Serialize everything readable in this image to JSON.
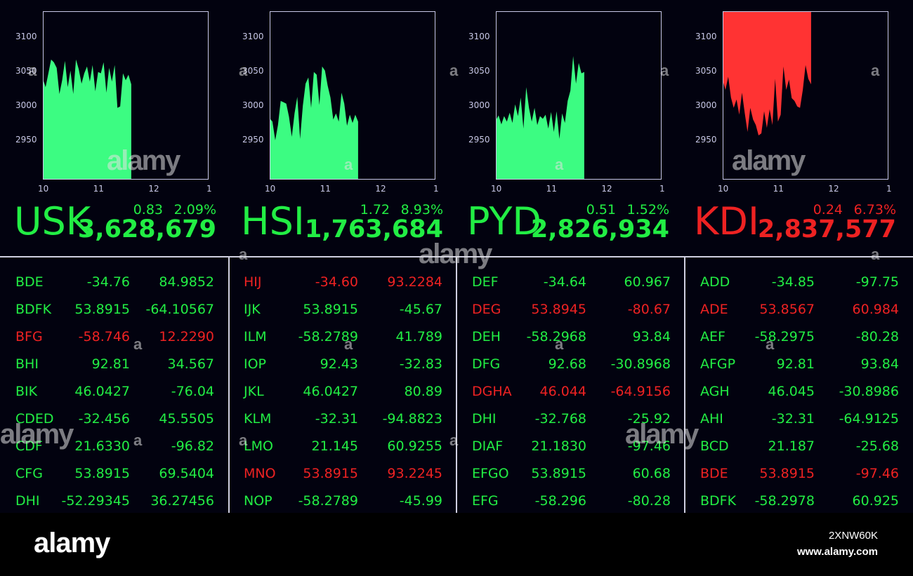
{
  "colors": {
    "up": "#22ee44",
    "down": "#ee2222",
    "area_up": "#3cfc82",
    "area_down": "#ff3333",
    "frame": "#c8c8e6"
  },
  "chart_data": [
    {
      "type": "area",
      "ticker": "USK",
      "direction": "up",
      "yticks": [
        "3100",
        "3050",
        "3000",
        "2950"
      ],
      "xticks": [
        "10",
        "11",
        "12",
        "1"
      ],
      "xlim": [
        10,
        13
      ],
      "ylim": [
        2906,
        3150
      ],
      "x": [
        10,
        10.05,
        10.1,
        10.15,
        10.2,
        10.25,
        10.3,
        10.35,
        10.4,
        10.45,
        10.5,
        10.55,
        10.6,
        10.65,
        10.7,
        10.75,
        10.8,
        10.85,
        10.9,
        10.95,
        11,
        11.05,
        11.1,
        11.15,
        11.2,
        11.25,
        11.3,
        11.35,
        11.4,
        11.45,
        11.5,
        11.55,
        11.6
      ],
      "values": [
        3052,
        3040,
        3060,
        3080,
        3076,
        3068,
        3030,
        3050,
        3078,
        3040,
        3064,
        3030,
        3080,
        3066,
        3045,
        3060,
        3070,
        3048,
        3072,
        3034,
        3062,
        3060,
        3076,
        3032,
        3068,
        3048,
        3072,
        3010,
        3012,
        3060,
        3050,
        3058,
        3044
      ]
    },
    {
      "type": "area",
      "ticker": "HSI",
      "direction": "up",
      "yticks": [
        "3100",
        "3050",
        "3000",
        "2950"
      ],
      "xticks": [
        "10",
        "11",
        "12",
        "1"
      ],
      "xlim": [
        10,
        13
      ],
      "ylim": [
        2906,
        3150
      ],
      "x": [
        10,
        10.05,
        10.1,
        10.15,
        10.2,
        10.25,
        10.3,
        10.35,
        10.4,
        10.45,
        10.5,
        10.55,
        10.6,
        10.65,
        10.7,
        10.75,
        10.8,
        10.85,
        10.9,
        10.95,
        11,
        11.05,
        11.1,
        11.15,
        11.2,
        11.25,
        11.3,
        11.35,
        11.4,
        11.45,
        11.5,
        11.55,
        11.6
      ],
      "values": [
        2995,
        2990,
        2963,
        2985,
        3020,
        3018,
        3016,
        2997,
        2968,
        3002,
        3026,
        2965,
        3013,
        3045,
        3054,
        3010,
        3062,
        3058,
        3014,
        3070,
        3064,
        3042,
        3025,
        2993,
        3002,
        2990,
        3032,
        3016,
        2984,
        3000,
        2988,
        3000,
        2990
      ]
    },
    {
      "type": "area",
      "ticker": "PYD",
      "direction": "up",
      "yticks": [
        "3100",
        "3050",
        "3000",
        "2950"
      ],
      "xticks": [
        "10",
        "11",
        "12",
        "1"
      ],
      "xlim": [
        10,
        13
      ],
      "ylim": [
        2906,
        3150
      ],
      "x": [
        10,
        10.05,
        10.1,
        10.15,
        10.2,
        10.25,
        10.3,
        10.35,
        10.4,
        10.45,
        10.5,
        10.55,
        10.6,
        10.65,
        10.7,
        10.75,
        10.8,
        10.85,
        10.9,
        10.95,
        11,
        11.05,
        11.1,
        11.15,
        11.2,
        11.25,
        11.3,
        11.35,
        11.4,
        11.45,
        11.5,
        11.55,
        11.6
      ],
      "values": [
        2992,
        2999,
        2986,
        2998,
        2990,
        3003,
        2988,
        3015,
        2998,
        3025,
        2980,
        3040,
        3010,
        2990,
        3010,
        2985,
        2998,
        2994,
        3000,
        2980,
        3004,
        2975,
        3005,
        2965,
        3002,
        2988,
        3020,
        3035,
        3085,
        3045,
        3075,
        3060,
        3062
      ]
    },
    {
      "type": "area",
      "ticker": "KDI",
      "direction": "down",
      "yticks": [
        "3100",
        "3050",
        "3000",
        "2950"
      ],
      "xticks": [
        "10",
        "11",
        "12",
        "1"
      ],
      "xlim": [
        10,
        13
      ],
      "ylim": [
        2906,
        3150
      ],
      "x": [
        10,
        10.05,
        10.1,
        10.15,
        10.2,
        10.25,
        10.3,
        10.35,
        10.4,
        10.45,
        10.5,
        10.55,
        10.6,
        10.65,
        10.7,
        10.75,
        10.8,
        10.85,
        10.9,
        10.95,
        11,
        11.05,
        11.1,
        11.15,
        11.2,
        11.25,
        11.3,
        11.35,
        11.4,
        11.45,
        11.5,
        11.55,
        11.6
      ],
      "values": [
        3050,
        3036,
        3055,
        3025,
        3010,
        3022,
        3000,
        3032,
        3002,
        2975,
        3010,
        2993,
        2985,
        2970,
        2973,
        3005,
        2981,
        3008,
        2985,
        3052,
        2990,
        3000,
        3070,
        3036,
        3051,
        3024,
        3020,
        3012,
        3010,
        3036,
        3072,
        3052,
        3044
      ]
    }
  ],
  "quotes": [
    {
      "ticker": "USK",
      "change": "0.83",
      "pct": "2.09%",
      "price": "3,628,679",
      "direction": "up"
    },
    {
      "ticker": "HSI",
      "change": "1.72",
      "pct": "8.93%",
      "price": "1,763,684",
      "direction": "up"
    },
    {
      "ticker": "PYD",
      "change": "0.51",
      "pct": "1.52%",
      "price": "2,826,934",
      "direction": "up"
    },
    {
      "ticker": "KDI",
      "change": "0.24",
      "pct": "6.73%",
      "price": "2,837,577",
      "direction": "down"
    }
  ],
  "tables": [
    [
      {
        "sym": "BDE",
        "a": "-34.76",
        "b": "84.9852",
        "dir": "up"
      },
      {
        "sym": "BDFK",
        "a": "53.8915",
        "b": "-64.10567",
        "dir": "up"
      },
      {
        "sym": "BFG",
        "a": "-58.746",
        "b": "12.2290",
        "dir": "down"
      },
      {
        "sym": "BHI",
        "a": "92.81",
        "b": "34.567",
        "dir": "up"
      },
      {
        "sym": "BIK",
        "a": "46.0427",
        "b": "-76.04",
        "dir": "up"
      },
      {
        "sym": "CDED",
        "a": "-32.456",
        "b": "45.5505",
        "dir": "up"
      },
      {
        "sym": "CDF",
        "a": "21.6330",
        "b": "-96.82",
        "dir": "up"
      },
      {
        "sym": "CFG",
        "a": "53.8915",
        "b": "69.5404",
        "dir": "up"
      },
      {
        "sym": "DHI",
        "a": "-52.29345",
        "b": "36.27456",
        "dir": "up"
      }
    ],
    [
      {
        "sym": "HIJ",
        "a": "-34.60",
        "b": "93.2284",
        "dir": "down"
      },
      {
        "sym": "IJK",
        "a": "53.8915",
        "b": "-45.67",
        "dir": "up"
      },
      {
        "sym": "ILM",
        "a": "-58.2789",
        "b": "41.789",
        "dir": "up"
      },
      {
        "sym": "IOP",
        "a": "92.43",
        "b": "-32.83",
        "dir": "up"
      },
      {
        "sym": "JKL",
        "a": "46.0427",
        "b": "80.89",
        "dir": "up"
      },
      {
        "sym": "KLM",
        "a": "-32.31",
        "b": "-94.8823",
        "dir": "up"
      },
      {
        "sym": "LMO",
        "a": "21.145",
        "b": "60.9255",
        "dir": "up"
      },
      {
        "sym": "MNO",
        "a": "53.8915",
        "b": "93.2245",
        "dir": "down"
      },
      {
        "sym": "NOP",
        "a": "-58.2789",
        "b": "-45.99",
        "dir": "up"
      }
    ],
    [
      {
        "sym": "DEF",
        "a": "-34.64",
        "b": "60.967",
        "dir": "up"
      },
      {
        "sym": "DEG",
        "a": "53.8945",
        "b": "-80.67",
        "dir": "down"
      },
      {
        "sym": "DEH",
        "a": "-58.2968",
        "b": "93.84",
        "dir": "up"
      },
      {
        "sym": "DFG",
        "a": "92.68",
        "b": "-30.8968",
        "dir": "up"
      },
      {
        "sym": "DGHA",
        "a": "46.044",
        "b": "-64.9156",
        "dir": "down"
      },
      {
        "sym": "DHI",
        "a": "-32.768",
        "b": "-25.92",
        "dir": "up"
      },
      {
        "sym": "DIAF",
        "a": "21.1830",
        "b": "-97.46",
        "dir": "up"
      },
      {
        "sym": "EFGO",
        "a": "53.8915",
        "b": "60.68",
        "dir": "up"
      },
      {
        "sym": "EFG",
        "a": "-58.296",
        "b": "-80.28",
        "dir": "up"
      }
    ],
    [
      {
        "sym": "ADD",
        "a": "-34.85",
        "b": "-97.75",
        "dir": "up"
      },
      {
        "sym": "ADE",
        "a": "53.8567",
        "b": "60.984",
        "dir": "down"
      },
      {
        "sym": "AEF",
        "a": "-58.2975",
        "b": "-80.28",
        "dir": "up"
      },
      {
        "sym": "AFGP",
        "a": "92.81",
        "b": "93.84",
        "dir": "up"
      },
      {
        "sym": "AGH",
        "a": "46.045",
        "b": "-30.8986",
        "dir": "up"
      },
      {
        "sym": "AHI",
        "a": "-32.31",
        "b": "-64.9125",
        "dir": "up"
      },
      {
        "sym": "BCD",
        "a": "21.187",
        "b": "-25.68",
        "dir": "up"
      },
      {
        "sym": "BDE",
        "a": "53.8915",
        "b": "-97.46",
        "dir": "down"
      },
      {
        "sym": "BDFK",
        "a": "-58.2978",
        "b": "60.925",
        "dir": "up"
      }
    ]
  ],
  "watermark": {
    "text": "alamy",
    "letter": "a"
  },
  "footer": {
    "brand": "alamy",
    "image_id": "2XNW60K",
    "url": "www.alamy.com"
  }
}
